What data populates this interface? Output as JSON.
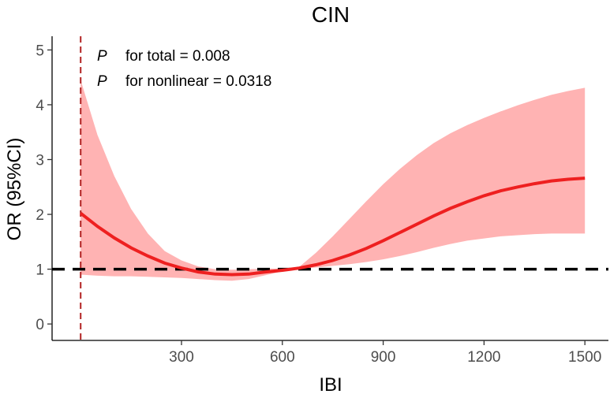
{
  "chart_data": {
    "type": "line",
    "title": "CIN",
    "xlabel": "IBI",
    "ylabel": "OR (95%CI)",
    "xlim": [
      -85,
      1570
    ],
    "ylim": [
      -0.3,
      5.25
    ],
    "x_ticks": [
      300,
      600,
      900,
      1200,
      1500
    ],
    "y_ticks": [
      0,
      1,
      2,
      3,
      4,
      5
    ],
    "grid": false,
    "annotations": [
      {
        "symbol": "P",
        "text": "for total = 0.008"
      },
      {
        "symbol": "P",
        "text": "for nonlinear = 0.0318"
      }
    ],
    "reference_line_y": 1,
    "reference_line_x": 0,
    "colors": {
      "curve": "#ee2020",
      "band": "#ffb3b3",
      "reference": "#000000",
      "vline": "#b22222"
    },
    "series": [
      {
        "type": "line",
        "x": [
          0,
          50,
          100,
          150,
          200,
          250,
          300,
          350,
          400,
          450,
          500,
          550,
          600,
          625,
          650,
          700,
          750,
          800,
          850,
          900,
          950,
          1000,
          1050,
          1100,
          1150,
          1200,
          1250,
          1300,
          1350,
          1400,
          1450,
          1500
        ],
        "y": [
          2.02,
          1.78,
          1.57,
          1.39,
          1.24,
          1.11,
          1.02,
          0.95,
          0.91,
          0.9,
          0.91,
          0.95,
          0.98,
          1.0,
          1.02,
          1.08,
          1.16,
          1.26,
          1.38,
          1.52,
          1.67,
          1.82,
          1.97,
          2.11,
          2.23,
          2.34,
          2.43,
          2.5,
          2.56,
          2.61,
          2.64,
          2.66
        ]
      },
      {
        "type": "band",
        "x": [
          0,
          50,
          100,
          150,
          200,
          250,
          300,
          350,
          400,
          450,
          500,
          550,
          600,
          625,
          650,
          700,
          750,
          800,
          850,
          900,
          950,
          1000,
          1050,
          1100,
          1150,
          1200,
          1250,
          1300,
          1350,
          1400,
          1450,
          1500
        ],
        "lower": [
          0.9,
          0.88,
          0.87,
          0.87,
          0.86,
          0.85,
          0.84,
          0.82,
          0.8,
          0.79,
          0.82,
          0.89,
          0.96,
          1.0,
          1.01,
          1.03,
          1.06,
          1.09,
          1.13,
          1.18,
          1.24,
          1.31,
          1.39,
          1.46,
          1.52,
          1.56,
          1.6,
          1.62,
          1.64,
          1.65,
          1.65,
          1.65
        ],
        "upper": [
          4.45,
          3.45,
          2.7,
          2.1,
          1.65,
          1.33,
          1.16,
          1.05,
          1.0,
          0.99,
          1.0,
          1.01,
          1.01,
          1.0,
          1.04,
          1.3,
          1.6,
          1.92,
          2.24,
          2.55,
          2.83,
          3.08,
          3.3,
          3.48,
          3.63,
          3.76,
          3.88,
          3.99,
          4.09,
          4.18,
          4.25,
          4.31
        ]
      }
    ]
  }
}
